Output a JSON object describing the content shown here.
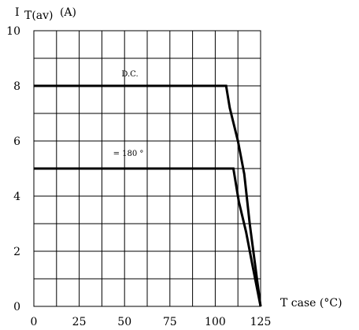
{
  "chart_data": {
    "type": "line",
    "title": "",
    "ylabel_main": "I",
    "ylabel_sub": "T(av)",
    "ylabel_unit": "(A)",
    "xlabel": "T case (°C)",
    "xlim": [
      0,
      125
    ],
    "ylim": [
      0,
      10
    ],
    "x_ticks": [
      0,
      25,
      50,
      75,
      100,
      125
    ],
    "y_ticks": [
      0,
      2,
      4,
      6,
      8,
      10
    ],
    "x_grid_step": 12.5,
    "y_grid_step": 1,
    "grid": true,
    "series": [
      {
        "name": "D.C.",
        "x": [
          0,
          106,
          108,
          112.5,
          116,
          119,
          125
        ],
        "y": [
          8,
          8,
          7.2,
          6.0,
          4.8,
          3.0,
          0
        ]
      },
      {
        "name": "= 180 °",
        "x": [
          0,
          110,
          113,
          117,
          120.5,
          125
        ],
        "y": [
          5,
          5,
          3.8,
          2.7,
          1.5,
          0
        ]
      }
    ]
  }
}
